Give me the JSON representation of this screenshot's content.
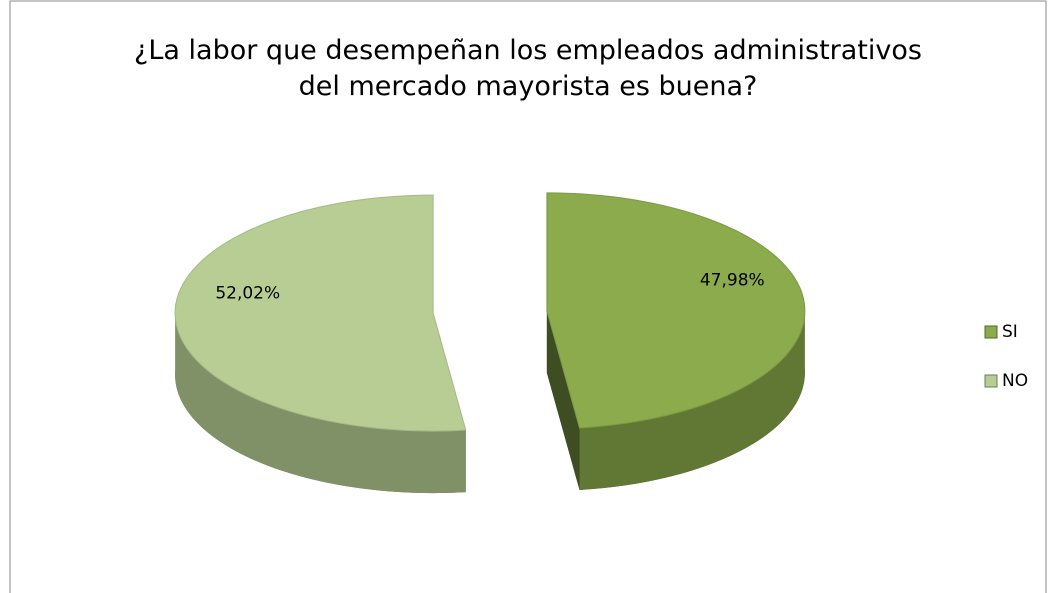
{
  "chart_data": {
    "type": "pie",
    "title": "¿La labor que desempeñan los empleados administrativos del mercado mayorista es buena?",
    "categories": [
      "SI",
      "NO"
    ],
    "values": [
      47.98,
      52.02
    ],
    "value_labels": [
      "47,98%",
      "52,02%"
    ],
    "colors": [
      "#8bab4c",
      "#b7cd93"
    ],
    "legend": "right"
  }
}
